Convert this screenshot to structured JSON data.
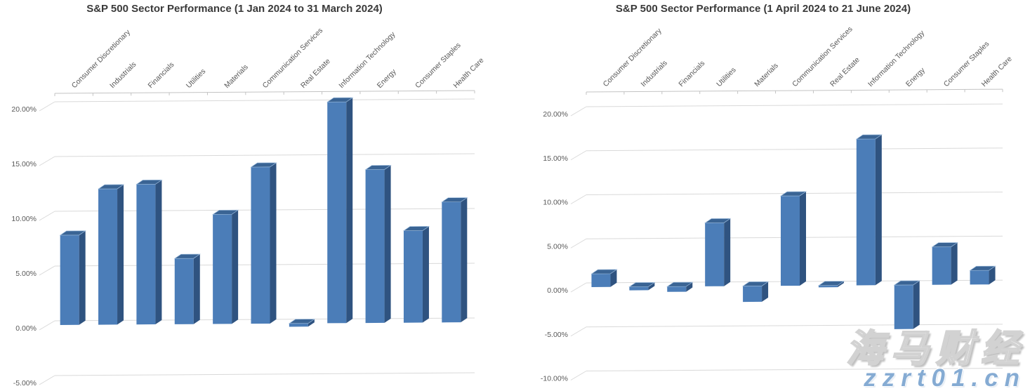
{
  "chart_data": [
    {
      "type": "bar",
      "title": "S&P 500 Sector Performance (1 Jan 2024 to 31 March 2024)",
      "categories": [
        "Consumer Discretionary",
        "Industrials",
        "Financials",
        "Utilities",
        "Materials",
        "Communication Services",
        "Real Estate",
        "Information Technology",
        "Energy",
        "Consumer Staples",
        "Health Care"
      ],
      "values": [
        8.2,
        12.4,
        12.8,
        6.0,
        10.0,
        14.3,
        -0.3,
        20.2,
        14.0,
        8.4,
        11.0
      ],
      "y_ticks": [
        "20.00%",
        "15.00%",
        "10.00%",
        "5.00%",
        "0.00%",
        "-5.00%"
      ],
      "ylim": [
        -5,
        20
      ],
      "xlabel": "",
      "ylabel": "",
      "grid": true,
      "legend": "none",
      "style": "excel-3d-column"
    },
    {
      "type": "bar",
      "title": "S&P 500 Sector Performance (1 April 2024 to 21 June 2024)",
      "categories": [
        "Consumer Discretionary",
        "Industrials",
        "Financials",
        "Utilities",
        "Materials",
        "Communication Services",
        "Real Estate",
        "Information Technology",
        "Energy",
        "Consumer Staples",
        "Health Care"
      ],
      "values": [
        1.5,
        -0.4,
        -0.6,
        7.2,
        -1.8,
        10.2,
        -0.2,
        16.6,
        -5.0,
        4.3,
        1.6
      ],
      "y_ticks": [
        "20.00%",
        "15.00%",
        "10.00%",
        "5.00%",
        "0.00%",
        "-5.00%",
        "-10.00%"
      ],
      "ylim": [
        -10,
        20
      ],
      "xlabel": "",
      "ylabel": "",
      "grid": true,
      "legend": "none",
      "style": "excel-3d-column"
    }
  ],
  "colors": {
    "bar_front": "#4b7db8",
    "bar_side": "#2f5380",
    "bar_top": "#3a6494",
    "bar_top_edge": "#9cbbdc",
    "gridline": "#d9d9d9",
    "axis_line": "#c3c3c3",
    "tick_text": "#595959",
    "title_text": "#3a3a3a",
    "watermark_url_color": "#85abd3"
  },
  "watermark": {
    "brand": "海马财经",
    "url": "zzrt01.cn"
  }
}
